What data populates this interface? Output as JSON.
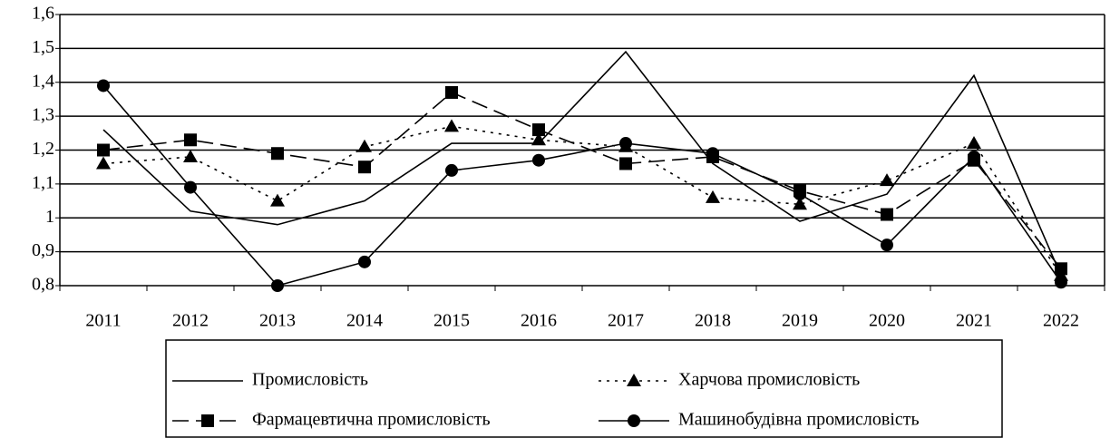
{
  "chart_data": {
    "type": "line",
    "categories": [
      "2011",
      "2012",
      "2013",
      "2014",
      "2015",
      "2016",
      "2017",
      "2018",
      "2019",
      "2020",
      "2021",
      "2022"
    ],
    "series": [
      {
        "name": "Промисловість",
        "color": "#000000",
        "dash": "solid",
        "marker": "none",
        "values": [
          1.26,
          1.02,
          0.98,
          1.05,
          1.22,
          1.22,
          1.49,
          1.16,
          0.99,
          1.07,
          1.42,
          0.83
        ]
      },
      {
        "name": "Харчова промисловість",
        "color": "#000000",
        "dash": "dot",
        "marker": "triangle",
        "values": [
          1.16,
          1.18,
          1.05,
          1.21,
          1.27,
          1.23,
          1.21,
          1.06,
          1.04,
          1.11,
          1.22,
          0.83
        ]
      },
      {
        "name": "Фармацевтична промисловість",
        "color": "#000000",
        "dash": "dash",
        "marker": "square",
        "values": [
          1.2,
          1.23,
          1.19,
          1.15,
          1.37,
          1.26,
          1.16,
          1.18,
          1.08,
          1.01,
          1.17,
          0.85
        ]
      },
      {
        "name": "Машинобудівна промисловість",
        "color": "#000000",
        "dash": "solid",
        "marker": "circle",
        "values": [
          1.39,
          1.09,
          0.8,
          0.87,
          1.14,
          1.17,
          1.22,
          1.19,
          1.07,
          0.92,
          1.18,
          0.81
        ]
      }
    ],
    "ylim": [
      0.8,
      1.6
    ],
    "yticks": [
      {
        "value": 0.8,
        "label": "0,8"
      },
      {
        "value": 0.9,
        "label": "0,9"
      },
      1,
      {
        "value": 1.1,
        "label": "1,1"
      },
      {
        "value": 1.2,
        "label": "1,2"
      },
      {
        "value": 1.3,
        "label": "1,3"
      },
      {
        "value": 1.4,
        "label": "1,4"
      },
      {
        "value": 1.5,
        "label": "1,5"
      },
      {
        "value": 1.6,
        "label": "1,6"
      }
    ],
    "grid": true,
    "legend": "bottom"
  }
}
